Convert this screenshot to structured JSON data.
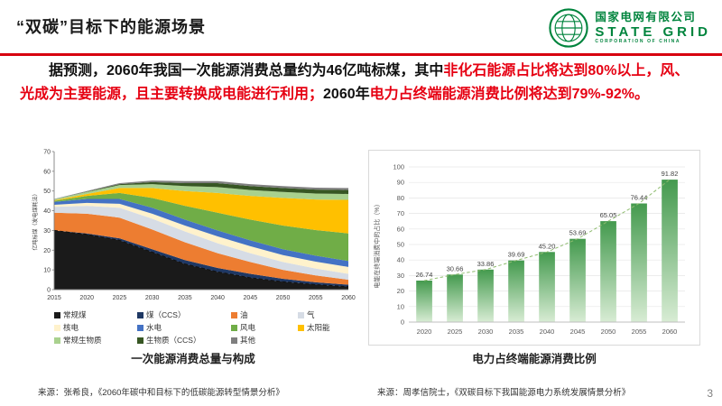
{
  "slide": {
    "title": "“双碳”目标下的能源场景",
    "page_number": "3"
  },
  "logo": {
    "company_cn": "国家电网有限公司",
    "company_en": "STATE GRID",
    "company_sub": "CORPORATION OF CHINA",
    "brand_color": "#00843d"
  },
  "paragraph": {
    "segments": [
      {
        "text": "据预测，2060年我国一次能源消费总量约为46亿吨标煤，其中",
        "color": "black"
      },
      {
        "text": "非化石能源占比将达到80%以上，风、光成为主要能源，且主要转换成电能进行利用；",
        "color": "red"
      },
      {
        "text": "2060年",
        "color": "black"
      },
      {
        "text": "电力占终端能源消费比例将达到79%-92%。",
        "color": "red"
      }
    ]
  },
  "left_chart": {
    "caption": "一次能源消费总量与构成",
    "source": "来源：张希良，《2060年碳中和目标下的低碳能源转型情景分析》"
  },
  "right_chart": {
    "caption": "电力占终端能源消费比例",
    "source": "来源：周孝信院士，《双碳目标下我国能源电力系统发展情景分析》"
  },
  "chart_data": [
    {
      "type": "area",
      "title": "一次能源消费总量与构成",
      "ylabel": "亿吨标煤（发电煤耗法）",
      "x": [
        2015,
        2020,
        2025,
        2030,
        2035,
        2040,
        2045,
        2050,
        2055,
        2060
      ],
      "ylim": [
        0,
        70
      ],
      "legend_position": "bottom",
      "series": [
        {
          "name": "常规煤",
          "color": "#1a1a1a",
          "values": [
            30,
            28,
            25,
            19,
            13,
            9,
            6,
            4,
            2.5,
            1.5
          ]
        },
        {
          "name": "煤（CCS）",
          "color": "#1f3864",
          "values": [
            0,
            0.5,
            1,
            1.5,
            2,
            2,
            2,
            1.5,
            1.2,
            1
          ]
        },
        {
          "name": "油",
          "color": "#ed7d31",
          "values": [
            9,
            10,
            10.5,
            10,
            9,
            7.5,
            6,
            4.5,
            3.5,
            2.5
          ]
        },
        {
          "name": "气",
          "color": "#d6dce5",
          "values": [
            3,
            4,
            5,
            5.5,
            5.5,
            5,
            4.5,
            4,
            3.5,
            3
          ]
        },
        {
          "name": "核电",
          "color": "#fff2cc",
          "values": [
            1,
            1.5,
            2,
            2.5,
            3,
            3.5,
            3.5,
            3.5,
            3.5,
            3.5
          ]
        },
        {
          "name": "水电",
          "color": "#4472c4",
          "values": [
            1.5,
            2,
            2.5,
            3,
            3,
            3,
            3,
            3,
            3,
            3
          ]
        },
        {
          "name": "风电",
          "color": "#70ad47",
          "values": [
            0.5,
            1.5,
            3,
            5,
            7,
            9,
            10.5,
            12,
            13,
            14
          ]
        },
        {
          "name": "太阳能",
          "color": "#ffc000",
          "values": [
            0.3,
            1,
            2.5,
            5,
            7.5,
            10,
            12,
            14,
            15.5,
            17
          ]
        },
        {
          "name": "常规生物质",
          "color": "#a9d18e",
          "values": [
            0.5,
            1,
            1.5,
            2,
            2.5,
            3,
            3,
            3,
            3,
            3
          ]
        },
        {
          "name": "生物质（CCS）",
          "color": "#375623",
          "values": [
            0,
            0.2,
            0.5,
            1,
            1.5,
            2,
            2,
            2,
            2,
            2
          ]
        },
        {
          "name": "其他",
          "color": "#7f7f7f",
          "values": [
            0.2,
            0.3,
            0.5,
            0.8,
            1,
            1,
            1,
            1,
            1,
            1
          ]
        }
      ]
    },
    {
      "type": "bar",
      "title": "电力占终端能源消费比例",
      "ylabel": "电能在终端消费中的占比（%）",
      "categories": [
        "2020",
        "2025",
        "2030",
        "2035",
        "2040",
        "2045",
        "2050",
        "2055",
        "2060"
      ],
      "values": [
        26.74,
        30.66,
        33.86,
        39.69,
        45.2,
        53.69,
        65.05,
        76.44,
        91.82
      ],
      "ylim": [
        0,
        100
      ],
      "grid": true,
      "bar_color_top": "#449a4e",
      "bar_color_bottom": "#d8ecd4",
      "trend_line_color": "#8fbc6f"
    }
  ]
}
